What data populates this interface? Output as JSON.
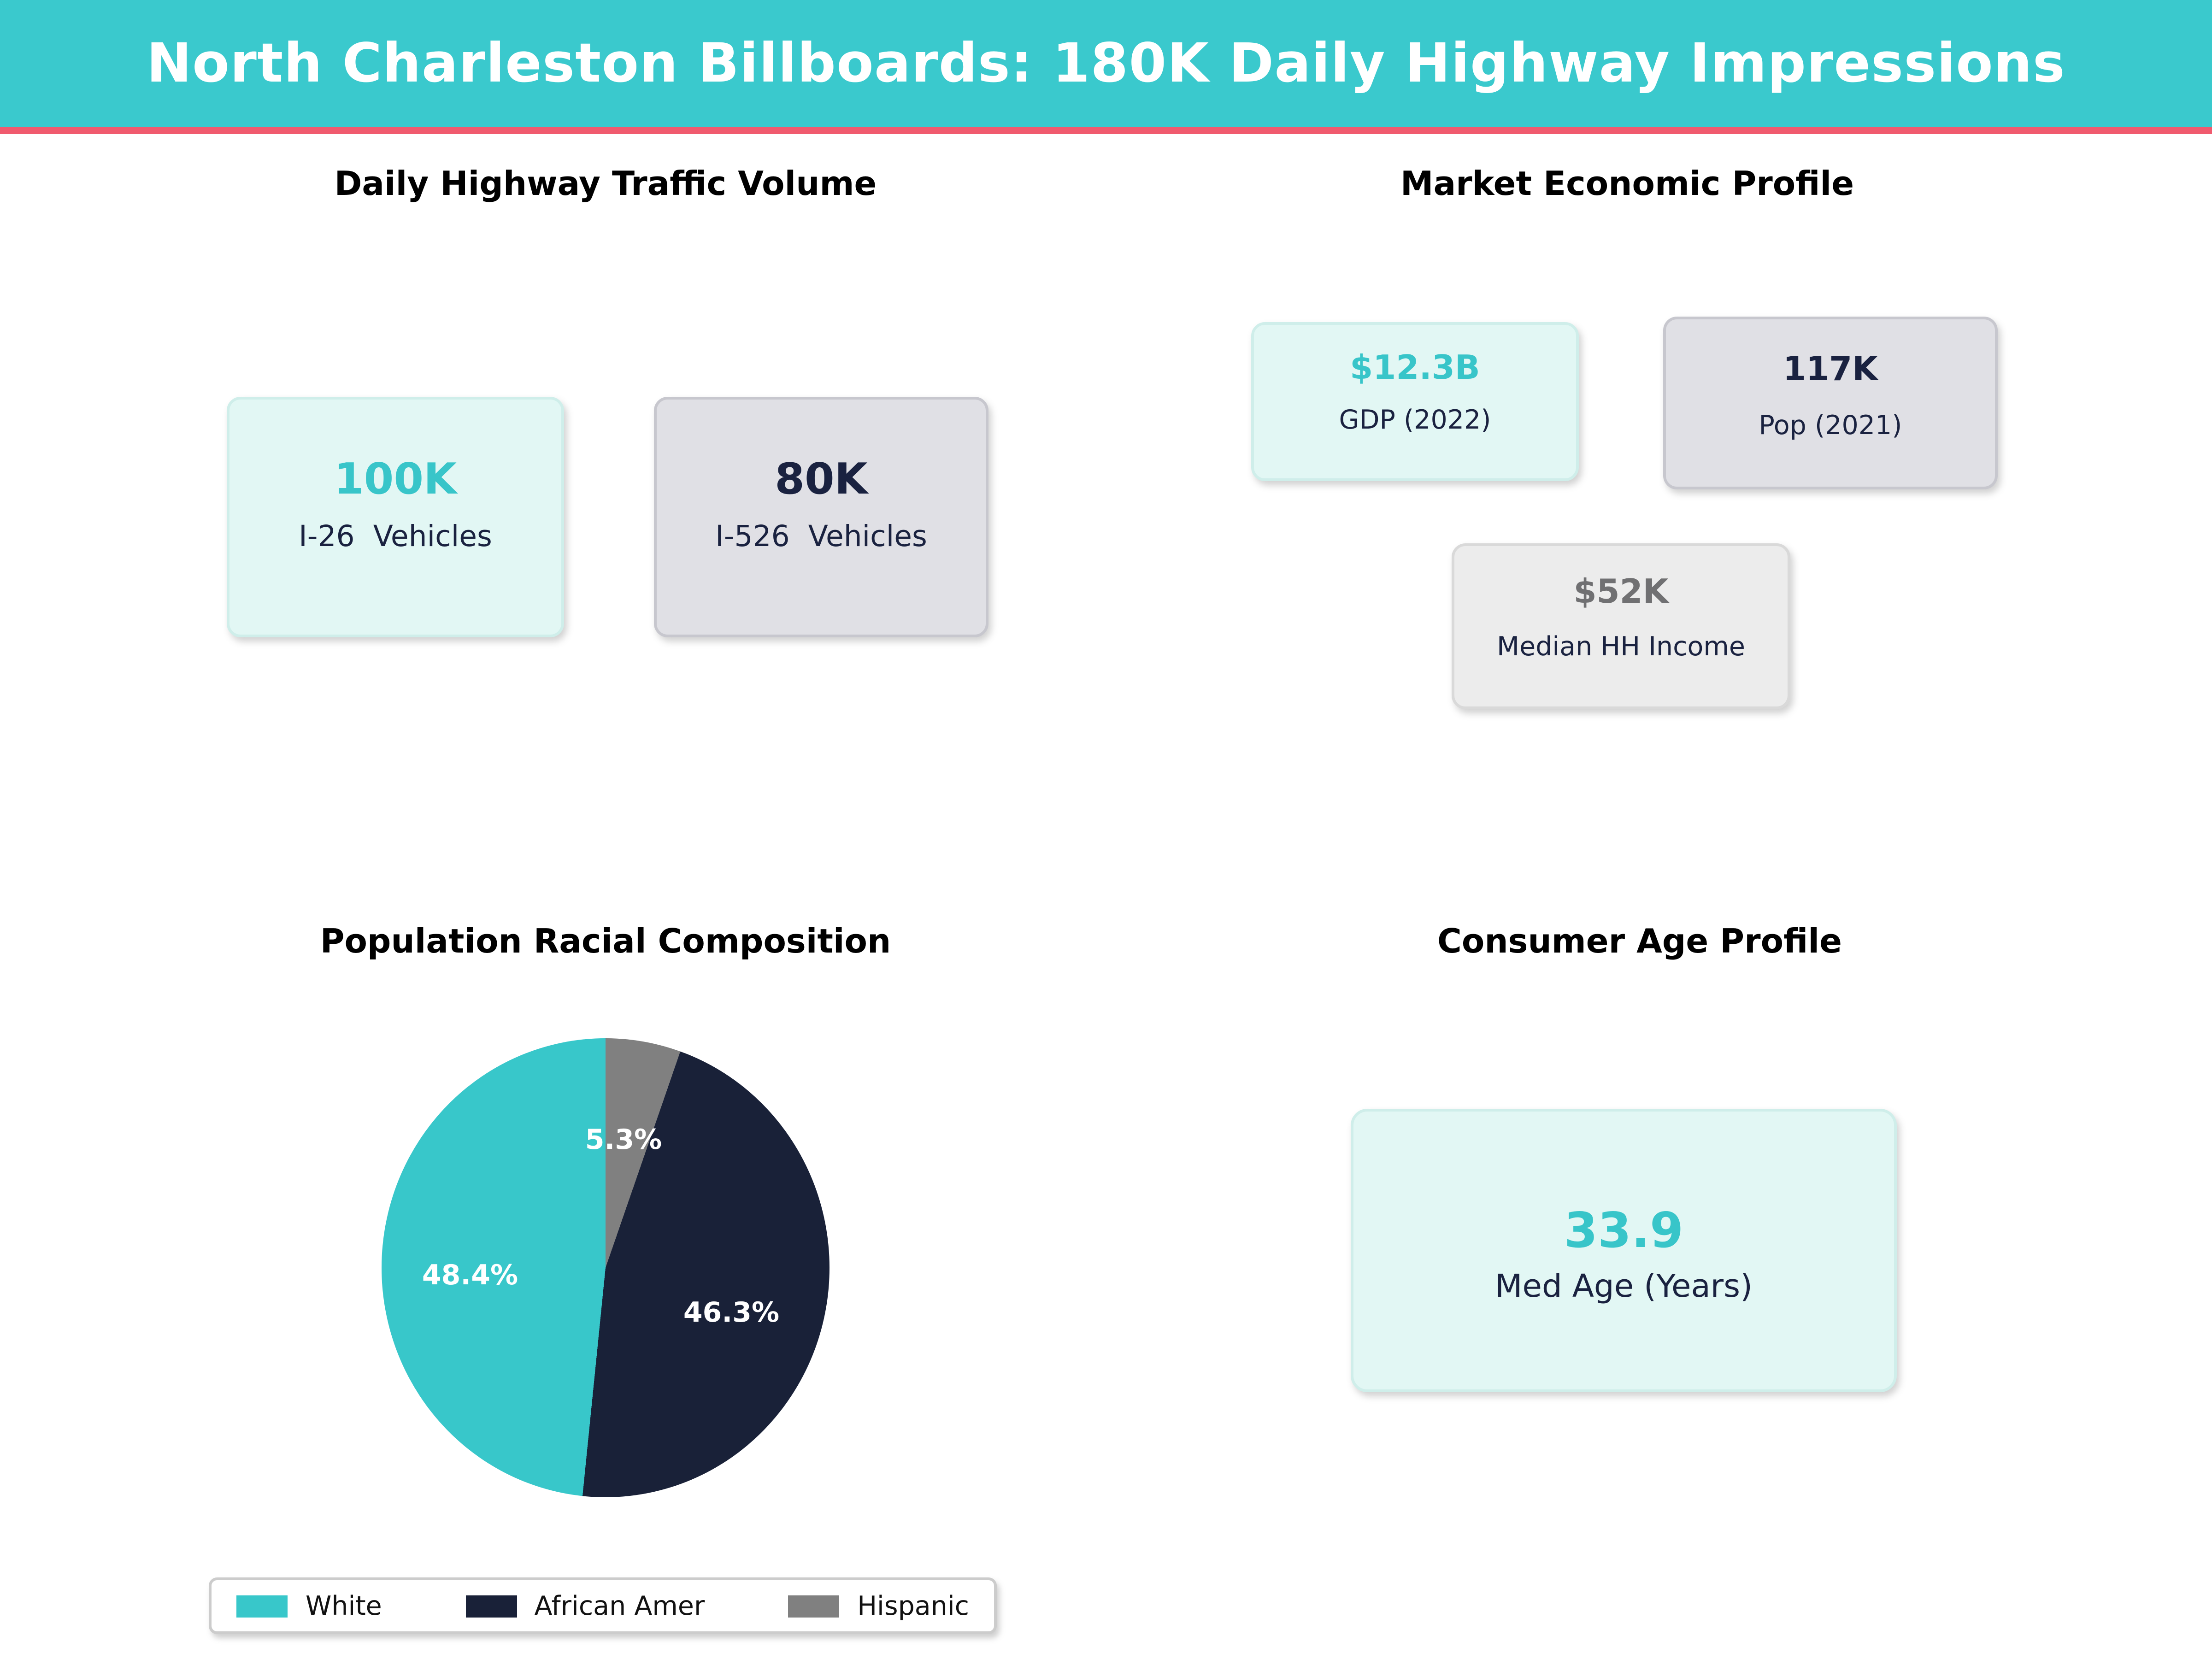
{
  "header": {
    "title": "North Charleston Billboards: 180K Daily Highway Impressions",
    "bg_color": "#3ac9cd",
    "text_color": "#ffffff",
    "divider_color": "#f05a6e"
  },
  "accent_colors": {
    "teal": "#38c5c9",
    "navy": "#1a2240",
    "gray_value": "#707072"
  },
  "sections": {
    "traffic": {
      "title": "Daily Highway Traffic Volume",
      "cards": [
        {
          "value": "100K",
          "label": "I-26  Vehicles"
        },
        {
          "value": "80K",
          "label": "I-526  Vehicles"
        }
      ]
    },
    "market": {
      "title": "Market Economic Profile",
      "cards": [
        {
          "value": "$12.3B",
          "label": "GDP (2022)"
        },
        {
          "value": "117K",
          "label": "Pop (2021)"
        },
        {
          "value": "$52K",
          "label": "Median HH Income"
        }
      ]
    },
    "race": {
      "title": "Population Racial Composition"
    },
    "age": {
      "title": "Consumer Age Profile",
      "cards": [
        {
          "value": "33.9",
          "label": "Med Age (Years)"
        }
      ]
    }
  },
  "chart_data": {
    "type": "pie",
    "title": "Population Racial Composition",
    "start_angle_deg": 90,
    "direction": "counterclockwise",
    "legend_position": "bottom-left",
    "slices": [
      {
        "name": "White",
        "value": 48.4,
        "label": "48.4%",
        "color": "#38c7ca"
      },
      {
        "name": "African Amer",
        "value": 46.3,
        "label": "46.3%",
        "color": "#192138"
      },
      {
        "name": "Hispanic",
        "value": 5.3,
        "label": "5.3%",
        "color": "#808080"
      }
    ]
  }
}
